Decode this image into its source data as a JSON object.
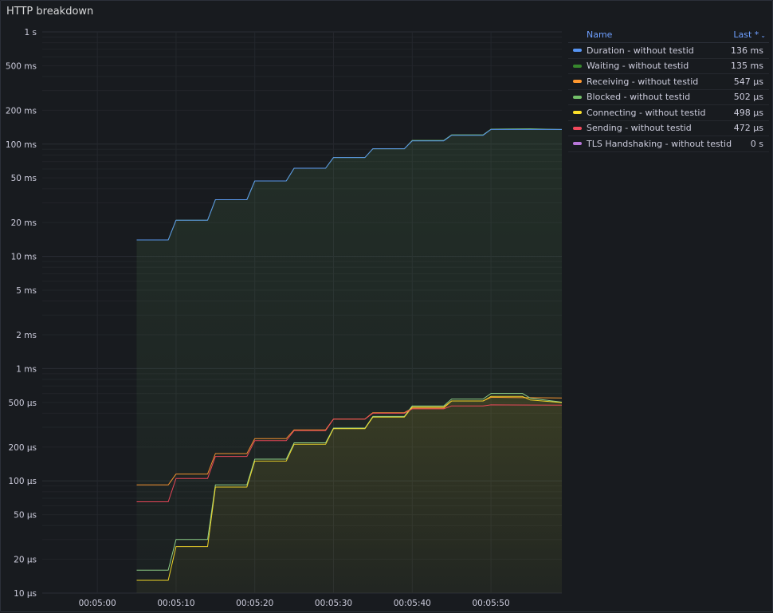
{
  "panel": {
    "title": "HTTP breakdown"
  },
  "legend": {
    "col_name": "Name",
    "col_last": "Last *",
    "sort_icon": "chevron-down-icon",
    "items": [
      {
        "label": "Duration - without testid",
        "value": "136 ms",
        "color": "#5794f2"
      },
      {
        "label": "Waiting - without testid",
        "value": "135 ms",
        "color": "#37872d"
      },
      {
        "label": "Receiving - without testid",
        "value": "547 µs",
        "color": "#ff9830"
      },
      {
        "label": "Blocked - without testid",
        "value": "502 µs",
        "color": "#73bf69"
      },
      {
        "label": "Connecting - without testid",
        "value": "498 µs",
        "color": "#fade2a"
      },
      {
        "label": "Sending - without testid",
        "value": "472 µs",
        "color": "#f2495c"
      },
      {
        "label": "TLS Handshaking - without testid",
        "value": "0 s",
        "color": "#b877d9"
      }
    ]
  },
  "chart_data": {
    "type": "line",
    "scale": "log",
    "y_unit": "seconds",
    "ylim": [
      1e-05,
      1
    ],
    "xlim": [
      "00:04:53",
      "00:05:59"
    ],
    "y_ticks": [
      {
        "v": 1,
        "label": "1 s"
      },
      {
        "v": 0.5,
        "label": "500 ms"
      },
      {
        "v": 0.2,
        "label": "200 ms"
      },
      {
        "v": 0.1,
        "label": "100 ms"
      },
      {
        "v": 0.05,
        "label": "50 ms"
      },
      {
        "v": 0.02,
        "label": "20 ms"
      },
      {
        "v": 0.01,
        "label": "10 ms"
      },
      {
        "v": 0.005,
        "label": "5 ms"
      },
      {
        "v": 0.002,
        "label": "2 ms"
      },
      {
        "v": 0.001,
        "label": "1 ms"
      },
      {
        "v": 0.0005,
        "label": "500 µs"
      },
      {
        "v": 0.0002,
        "label": "200 µs"
      },
      {
        "v": 0.0001,
        "label": "100 µs"
      },
      {
        "v": 5e-05,
        "label": "50 µs"
      },
      {
        "v": 2e-05,
        "label": "20 µs"
      },
      {
        "v": 1e-05,
        "label": "10 µs"
      }
    ],
    "x_ticks": [
      "00:05:00",
      "00:05:10",
      "00:05:20",
      "00:05:30",
      "00:05:40",
      "00:05:50"
    ],
    "grid": true,
    "legend_position": "right",
    "series": [
      {
        "name": "Duration - without testid",
        "color": "#73bf69",
        "fill": true,
        "points": [
          [
            "00:05:05",
            0.014
          ],
          [
            "00:05:09",
            0.014
          ],
          [
            "00:05:10",
            0.021
          ],
          [
            "00:05:14",
            0.021
          ],
          [
            "00:05:15",
            0.032
          ],
          [
            "00:05:19",
            0.032
          ],
          [
            "00:05:20",
            0.047
          ],
          [
            "00:05:24",
            0.047
          ],
          [
            "00:05:25",
            0.061
          ],
          [
            "00:05:29",
            0.061
          ],
          [
            "00:05:30",
            0.076
          ],
          [
            "00:05:34",
            0.076
          ],
          [
            "00:05:35",
            0.091
          ],
          [
            "00:05:39",
            0.091
          ],
          [
            "00:05:40",
            0.108
          ],
          [
            "00:05:44",
            0.108
          ],
          [
            "00:05:45",
            0.121
          ],
          [
            "00:05:49",
            0.121
          ],
          [
            "00:05:50",
            0.136
          ],
          [
            "00:05:55",
            0.137
          ],
          [
            "00:05:57",
            0.136
          ],
          [
            "00:05:59",
            0.135
          ]
        ]
      },
      {
        "name": "Waiting - without testid",
        "color": "#5794f2",
        "fill": false,
        "points": [
          [
            "00:05:05",
            0.014
          ],
          [
            "00:05:09",
            0.014
          ],
          [
            "00:05:10",
            0.021
          ],
          [
            "00:05:14",
            0.021
          ],
          [
            "00:05:15",
            0.032
          ],
          [
            "00:05:19",
            0.032
          ],
          [
            "00:05:20",
            0.047
          ],
          [
            "00:05:24",
            0.047
          ],
          [
            "00:05:25",
            0.061
          ],
          [
            "00:05:29",
            0.061
          ],
          [
            "00:05:30",
            0.076
          ],
          [
            "00:05:34",
            0.076
          ],
          [
            "00:05:35",
            0.091
          ],
          [
            "00:05:39",
            0.091
          ],
          [
            "00:05:40",
            0.107
          ],
          [
            "00:05:44",
            0.107
          ],
          [
            "00:05:45",
            0.12
          ],
          [
            "00:05:49",
            0.12
          ],
          [
            "00:05:50",
            0.135
          ],
          [
            "00:05:59",
            0.135
          ]
        ]
      },
      {
        "name": "Receiving - without testid",
        "color": "#ff9830",
        "fill": false,
        "points": [
          [
            "00:05:05",
            9.2e-05
          ],
          [
            "00:05:09",
            9.2e-05
          ],
          [
            "00:05:10",
            0.000115
          ],
          [
            "00:05:14",
            0.000115
          ],
          [
            "00:05:15",
            0.000175
          ],
          [
            "00:05:19",
            0.000175
          ],
          [
            "00:05:20",
            0.000238
          ],
          [
            "00:05:24",
            0.000238
          ],
          [
            "00:05:25",
            0.000285
          ],
          [
            "00:05:29",
            0.000285
          ],
          [
            "00:05:30",
            0.000355
          ],
          [
            "00:05:34",
            0.000355
          ],
          [
            "00:05:35",
            0.000405
          ],
          [
            "00:05:39",
            0.000405
          ],
          [
            "00:05:40",
            0.000445
          ],
          [
            "00:05:44",
            0.000445
          ],
          [
            "00:05:45",
            0.000515
          ],
          [
            "00:05:49",
            0.000515
          ],
          [
            "00:05:50",
            0.000555
          ],
          [
            "00:05:59",
            0.000547
          ]
        ]
      },
      {
        "name": "Blocked - without testid",
        "color": "#96d98d",
        "fill": false,
        "points": [
          [
            "00:05:05",
            1.6e-05
          ],
          [
            "00:05:09",
            1.6e-05
          ],
          [
            "00:05:10",
            3e-05
          ],
          [
            "00:05:14",
            3e-05
          ],
          [
            "00:05:15",
            9.2e-05
          ],
          [
            "00:05:19",
            9.2e-05
          ],
          [
            "00:05:20",
            0.000156
          ],
          [
            "00:05:24",
            0.000156
          ],
          [
            "00:05:25",
            0.000218
          ],
          [
            "00:05:29",
            0.000218
          ],
          [
            "00:05:30",
            0.000295
          ],
          [
            "00:05:34",
            0.000295
          ],
          [
            "00:05:35",
            0.000375
          ],
          [
            "00:05:39",
            0.000375
          ],
          [
            "00:05:40",
            0.000465
          ],
          [
            "00:05:44",
            0.000465
          ],
          [
            "00:05:45",
            0.000535
          ],
          [
            "00:05:49",
            0.000535
          ],
          [
            "00:05:50",
            0.0006
          ],
          [
            "00:05:54",
            0.0006
          ],
          [
            "00:05:55",
            0.000545
          ],
          [
            "00:05:59",
            0.000502
          ]
        ]
      },
      {
        "name": "Connecting - without testid",
        "color": "#fade2a",
        "fill": true,
        "points": [
          [
            "00:05:05",
            1.3e-05
          ],
          [
            "00:05:09",
            1.3e-05
          ],
          [
            "00:05:10",
            2.6e-05
          ],
          [
            "00:05:14",
            2.6e-05
          ],
          [
            "00:05:15",
            8.8e-05
          ],
          [
            "00:05:19",
            8.8e-05
          ],
          [
            "00:05:20",
            0.00015
          ],
          [
            "00:05:24",
            0.00015
          ],
          [
            "00:05:25",
            0.000212
          ],
          [
            "00:05:29",
            0.000212
          ],
          [
            "00:05:30",
            0.000292
          ],
          [
            "00:05:34",
            0.000292
          ],
          [
            "00:05:35",
            0.00037
          ],
          [
            "00:05:39",
            0.00037
          ],
          [
            "00:05:40",
            0.000455
          ],
          [
            "00:05:44",
            0.000455
          ],
          [
            "00:05:45",
            0.000515
          ],
          [
            "00:05:49",
            0.000515
          ],
          [
            "00:05:50",
            0.000565
          ],
          [
            "00:05:54",
            0.000565
          ],
          [
            "00:05:55",
            0.000525
          ],
          [
            "00:05:59",
            0.000498
          ]
        ]
      },
      {
        "name": "Sending - without testid",
        "color": "#f2495c",
        "fill": false,
        "points": [
          [
            "00:05:05",
            6.5e-05
          ],
          [
            "00:05:09",
            6.5e-05
          ],
          [
            "00:05:10",
            0.000105
          ],
          [
            "00:05:14",
            0.000105
          ],
          [
            "00:05:15",
            0.000165
          ],
          [
            "00:05:19",
            0.000165
          ],
          [
            "00:05:20",
            0.000228
          ],
          [
            "00:05:24",
            0.000228
          ],
          [
            "00:05:25",
            0.00028
          ],
          [
            "00:05:29",
            0.00028
          ],
          [
            "00:05:30",
            0.000355
          ],
          [
            "00:05:34",
            0.000355
          ],
          [
            "00:05:35",
            0.0004
          ],
          [
            "00:05:39",
            0.0004
          ],
          [
            "00:05:40",
            0.000438
          ],
          [
            "00:05:44",
            0.000438
          ],
          [
            "00:05:45",
            0.000465
          ],
          [
            "00:05:49",
            0.000465
          ],
          [
            "00:05:50",
            0.000475
          ],
          [
            "00:05:59",
            0.000472
          ]
        ]
      }
    ]
  }
}
